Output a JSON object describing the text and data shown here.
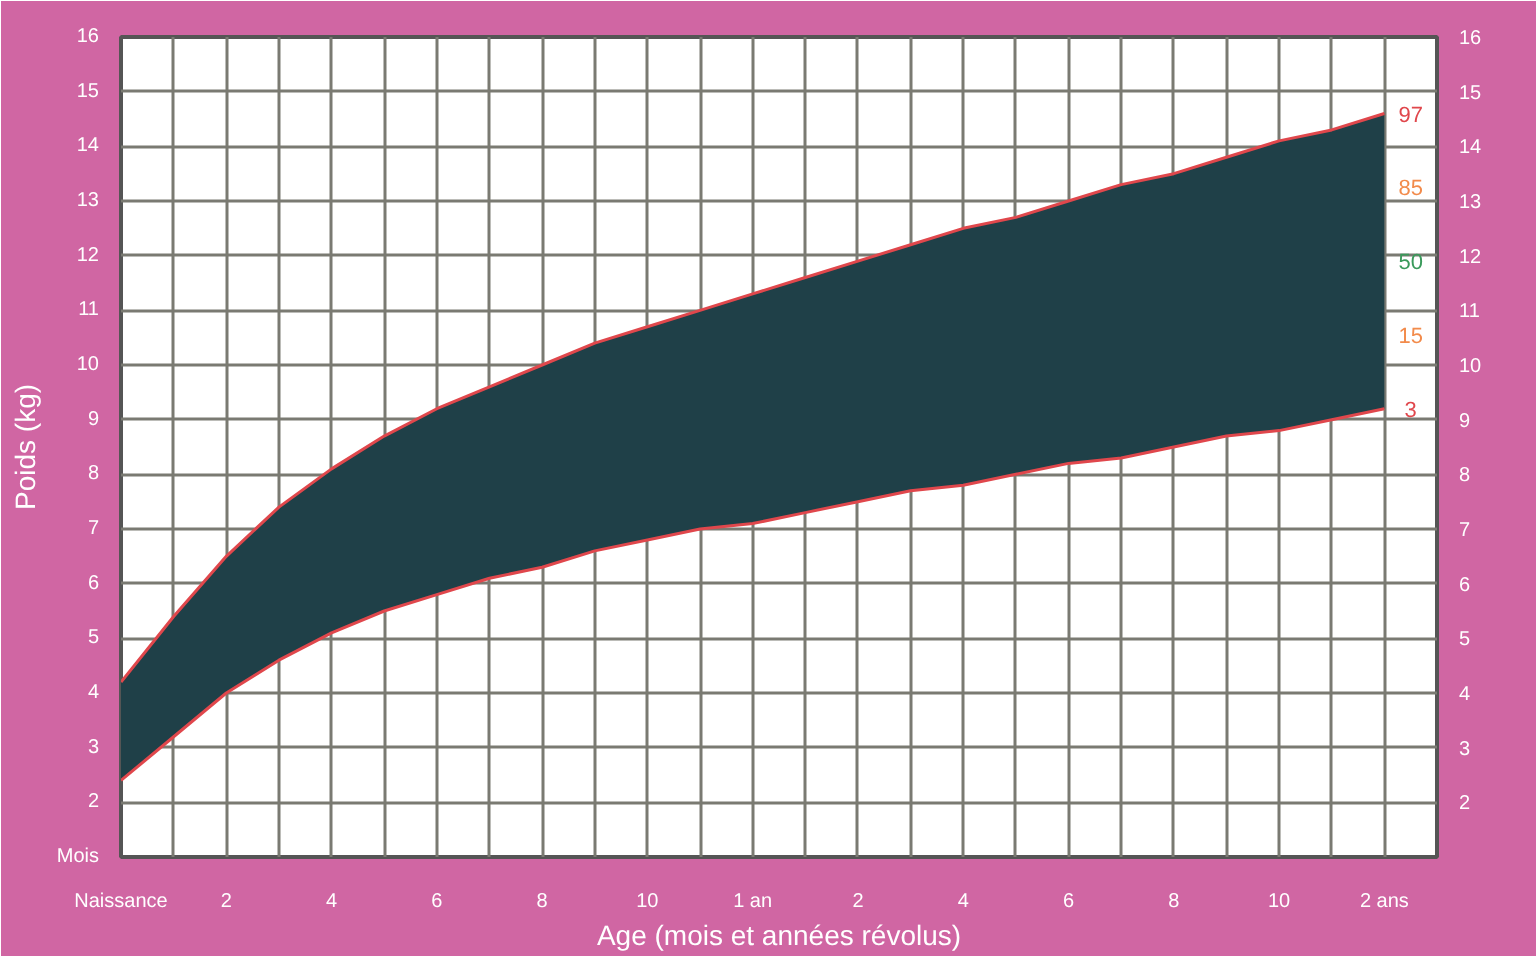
{
  "chart_data": {
    "type": "line",
    "xlabel": "Age (mois et années révolus)",
    "ylabel": "Poids (kg)",
    "categories": [
      "Naissance",
      null,
      "2",
      null,
      "4",
      null,
      "6",
      null,
      "8",
      null,
      "10",
      null,
      "1 an",
      null,
      "2",
      null,
      "4",
      null,
      "6",
      null,
      "8",
      null,
      "10",
      null,
      "2 ans"
    ],
    "series": [
      {
        "type": "area",
        "color": "#1f4048",
        "values": [
          4.2,
          5.4,
          6.5,
          7.4,
          8.1,
          8.7,
          9.2,
          9.6,
          10.0,
          10.4,
          10.7,
          11.0,
          11.3,
          11.6,
          11.9,
          12.2,
          12.5,
          12.7,
          13.0,
          13.3,
          13.5,
          13.8,
          14.1,
          14.3,
          14.6
        ]
      },
      {
        "name": "97",
        "color": "#e0474c",
        "values": [
          4.2,
          5.4,
          6.5,
          7.4,
          8.1,
          8.7,
          9.2,
          9.6,
          10.0,
          10.4,
          10.7,
          11.0,
          11.3,
          11.6,
          11.9,
          12.2,
          12.5,
          12.7,
          13.0,
          13.3,
          13.5,
          13.8,
          14.1,
          14.3,
          14.6
        ]
      },
      {
        "name": "3",
        "color": "#e0474c",
        "values": [
          2.4,
          3.2,
          4.0,
          4.6,
          5.1,
          5.5,
          5.8,
          6.1,
          6.3,
          6.6,
          6.8,
          7.0,
          7.1,
          7.3,
          7.5,
          7.7,
          7.8,
          8.0,
          8.2,
          8.3,
          8.5,
          8.7,
          8.8,
          9.0,
          9.2
        ]
      }
    ],
    "ylim": [
      1,
      16
    ],
    "y2lim": [
      1,
      16
    ],
    "yticks": [
      2,
      3,
      4,
      5,
      6,
      7,
      8,
      9,
      10,
      11,
      12,
      13,
      14,
      15,
      16
    ],
    "y2ticks": [
      2,
      3,
      4,
      5,
      6,
      7,
      8,
      9,
      10,
      11,
      12,
      13,
      14,
      15,
      16
    ],
    "grid": true,
    "annotations": [
      "Mois",
      "85",
      "50",
      "15"
    ]
  }
}
